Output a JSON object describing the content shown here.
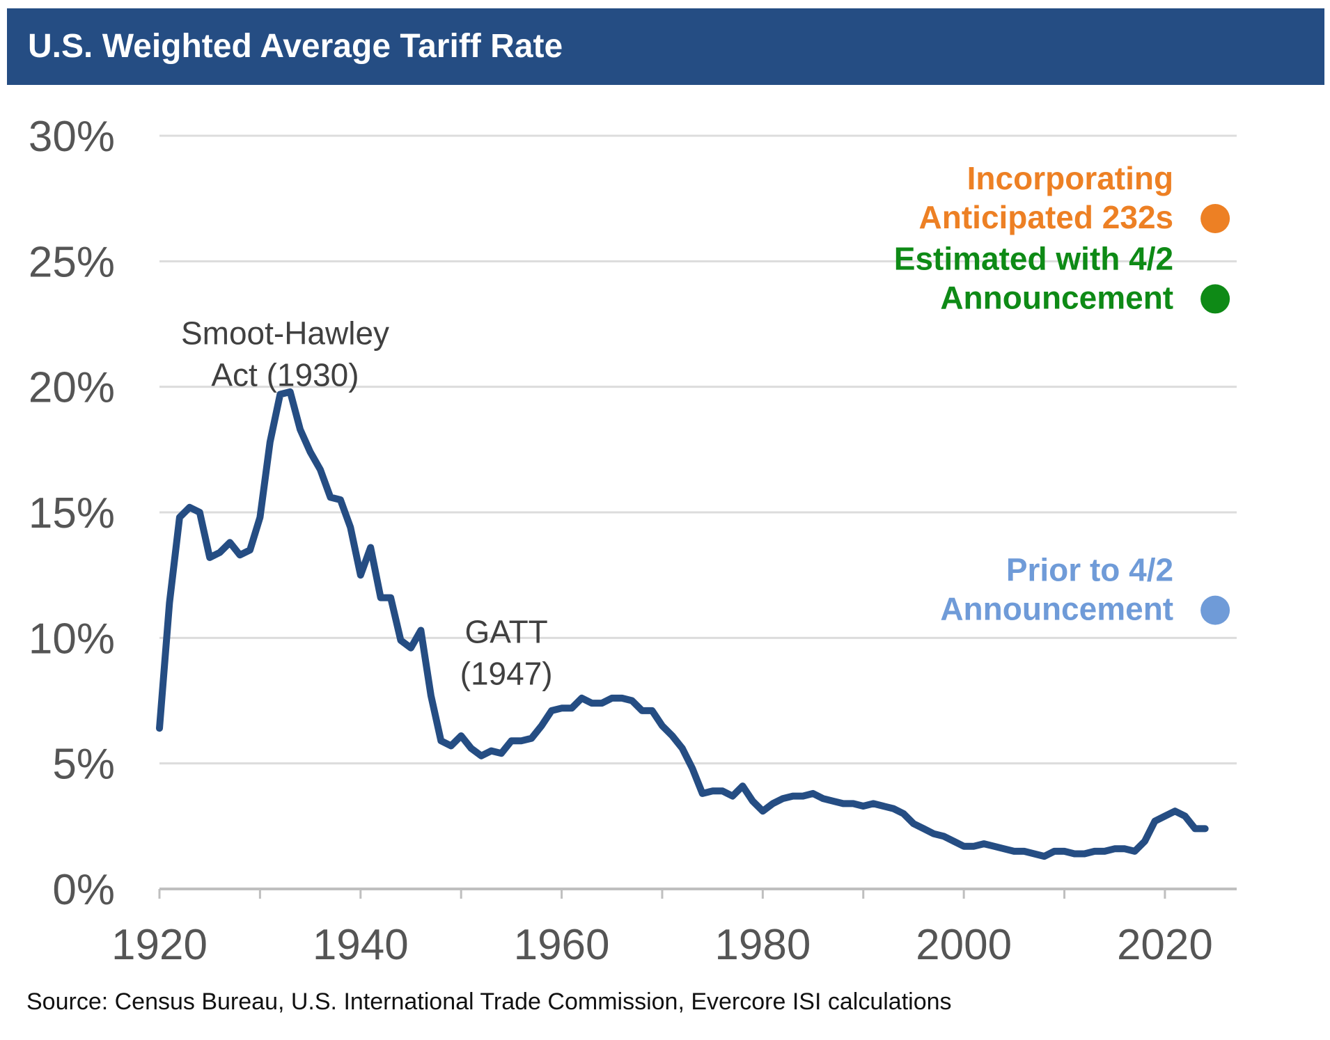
{
  "chart_data": {
    "type": "line",
    "title": "U.S. Weighted Average Tariff Rate",
    "source": "Source: Census Bureau, U.S. International Trade Commission, Evercore ISI calculations",
    "xlim": [
      1920,
      2027
    ],
    "ylim": [
      0,
      30
    ],
    "grid": true,
    "x_ticks": [
      "1920",
      "1940",
      "1960",
      "1980",
      "2000",
      "2020"
    ],
    "y_ticks": [
      "0%",
      "5%",
      "10%",
      "15%",
      "20%",
      "25%",
      "30%"
    ],
    "series": [
      {
        "color": "#254D83",
        "x": [
          1920,
          1921,
          1922,
          1923,
          1924,
          1925,
          1926,
          1927,
          1928,
          1929,
          1930,
          1931,
          1932,
          1933,
          1934,
          1935,
          1936,
          1937,
          1938,
          1939,
          1940,
          1941,
          1942,
          1943,
          1944,
          1945,
          1946,
          1947,
          1948,
          1949,
          1950,
          1951,
          1952,
          1953,
          1954,
          1955,
          1956,
          1957,
          1958,
          1959,
          1960,
          1961,
          1962,
          1963,
          1964,
          1965,
          1966,
          1967,
          1968,
          1969,
          1970,
          1971,
          1972,
          1973,
          1974,
          1975,
          1976,
          1977,
          1978,
          1979,
          1980,
          1981,
          1982,
          1983,
          1984,
          1985,
          1986,
          1987,
          1988,
          1989,
          1990,
          1991,
          1992,
          1993,
          1994,
          1995,
          1996,
          1997,
          1998,
          1999,
          2000,
          2001,
          2002,
          2003,
          2004,
          2005,
          2006,
          2007,
          2008,
          2009,
          2010,
          2011,
          2012,
          2013,
          2014,
          2015,
          2016,
          2017,
          2018,
          2019,
          2020,
          2021,
          2022,
          2023,
          2024
        ],
        "y": [
          6.4,
          11.4,
          14.8,
          15.2,
          15.0,
          13.2,
          13.4,
          13.8,
          13.3,
          13.5,
          14.8,
          17.8,
          19.7,
          19.8,
          18.3,
          17.4,
          16.7,
          15.6,
          15.5,
          14.4,
          12.5,
          13.6,
          11.6,
          11.6,
          9.9,
          9.6,
          10.3,
          7.7,
          5.9,
          5.7,
          6.1,
          5.6,
          5.3,
          5.5,
          5.4,
          5.9,
          5.9,
          6.0,
          6.5,
          7.1,
          7.2,
          7.2,
          7.6,
          7.4,
          7.4,
          7.6,
          7.6,
          7.5,
          7.1,
          7.1,
          6.5,
          6.1,
          5.6,
          4.8,
          3.8,
          3.9,
          3.9,
          3.7,
          4.1,
          3.5,
          3.1,
          3.4,
          3.6,
          3.7,
          3.7,
          3.8,
          3.6,
          3.5,
          3.4,
          3.4,
          3.3,
          3.4,
          3.3,
          3.2,
          3.0,
          2.6,
          2.4,
          2.2,
          2.1,
          1.9,
          1.7,
          1.7,
          1.8,
          1.7,
          1.6,
          1.5,
          1.5,
          1.4,
          1.3,
          1.5,
          1.5,
          1.4,
          1.4,
          1.5,
          1.5,
          1.6,
          1.6,
          1.5,
          1.9,
          2.7,
          2.9,
          3.1,
          2.9,
          2.4,
          2.4
        ]
      }
    ],
    "points": [
      {
        "label_lines": [
          "Incorporating",
          "Anticipated 232s"
        ],
        "x": 2025,
        "y": 26.7,
        "color": "#ED8024"
      },
      {
        "label_lines": [
          "Estimated with 4/2",
          "Announcement"
        ],
        "x": 2025,
        "y": 23.5,
        "color": "#0E8A16"
      },
      {
        "label_lines": [
          "Prior to 4/2",
          "Announcement"
        ],
        "x": 2025,
        "y": 11.1,
        "color": "#6F9BD8"
      }
    ],
    "annotations": [
      {
        "lines": [
          "Smoot-Hawley",
          "Act (1930)"
        ],
        "x": 1932.5,
        "y": 21.7
      },
      {
        "lines": [
          "GATT",
          "(1947)"
        ],
        "x": 1954.5,
        "y": 9.8
      }
    ]
  }
}
